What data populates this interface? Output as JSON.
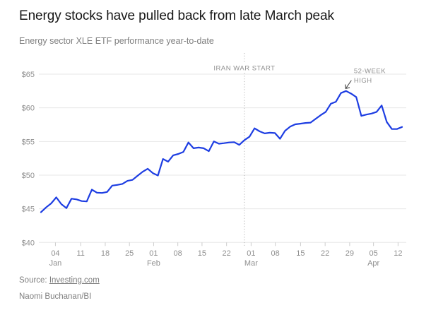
{
  "header": {
    "title": "Energy stocks have pulled back from late March peak",
    "subtitle": "Energy sector XLE ETF performance year-to-date"
  },
  "footer": {
    "source_prefix": "Source: ",
    "source_link": "Investing.com",
    "byline": "Naomi Buchanan/BI"
  },
  "colors": {
    "line_blue": "#1d3de2",
    "grid": "#e7e7e7",
    "axis_text": "#8e8e8e",
    "tick_mark": "#cccccc",
    "annotation_text": "#8f8f8f",
    "arrow": "#4d4d4d",
    "vline": "#b3b3b3"
  },
  "chart_data": {
    "type": "line",
    "title": "Energy sector XLE ETF performance year-to-date",
    "series_name": "Energy sector XLE ETF price",
    "y_tick_prefix": "$",
    "ylim": [
      40,
      65
    ],
    "yticks": [
      40,
      45,
      50,
      55,
      60,
      65
    ],
    "grid": "horizontal",
    "legend": "none",
    "values": [
      44.5,
      45.2,
      45.8,
      46.7,
      45.7,
      45.1,
      46.5,
      46.4,
      46.15,
      46.1,
      47.85,
      47.4,
      47.35,
      47.5,
      48.45,
      48.55,
      48.7,
      49.15,
      49.3,
      49.9,
      50.5,
      50.95,
      50.3,
      49.95,
      52.4,
      52.0,
      52.95,
      53.15,
      53.45,
      54.85,
      54.0,
      54.1,
      54.0,
      53.55,
      55.0,
      54.67,
      54.75,
      54.85,
      54.9,
      54.5,
      55.2,
      55.7,
      56.95,
      56.5,
      56.2,
      56.3,
      56.25,
      55.4,
      56.6,
      57.2,
      57.55,
      57.65,
      57.75,
      57.8,
      58.35,
      58.9,
      59.4,
      60.6,
      60.9,
      62.2,
      62.5,
      62.1,
      61.6,
      58.8,
      59.0,
      59.15,
      59.4,
      60.35,
      57.9,
      56.85,
      56.85,
      57.15
    ],
    "x_ticks": [
      {
        "label": "04",
        "month": "Jan",
        "pos": 0.04
      },
      {
        "label": "11",
        "pos": 0.11
      },
      {
        "label": "18",
        "pos": 0.178
      },
      {
        "label": "25",
        "pos": 0.245
      },
      {
        "label": "01",
        "month": "Feb",
        "pos": 0.312
      },
      {
        "label": "08",
        "pos": 0.379
      },
      {
        "label": "15",
        "pos": 0.446
      },
      {
        "label": "22",
        "pos": 0.514
      },
      {
        "label": "01",
        "month": "Mar",
        "pos": 0.582
      },
      {
        "label": "08",
        "pos": 0.649
      },
      {
        "label": "15",
        "pos": 0.719
      },
      {
        "label": "22",
        "pos": 0.787
      },
      {
        "label": "29",
        "pos": 0.855
      },
      {
        "label": "05",
        "month": "Apr",
        "pos": 0.921
      },
      {
        "label": "12",
        "pos": 0.989
      }
    ],
    "annotations": {
      "vline": {
        "label": "IRAN WAR START",
        "pos": 0.5635
      },
      "peak": {
        "label_line1": "52-WEEK",
        "label_line2": "HIGH",
        "value": 62.5,
        "index": 60
      }
    }
  }
}
